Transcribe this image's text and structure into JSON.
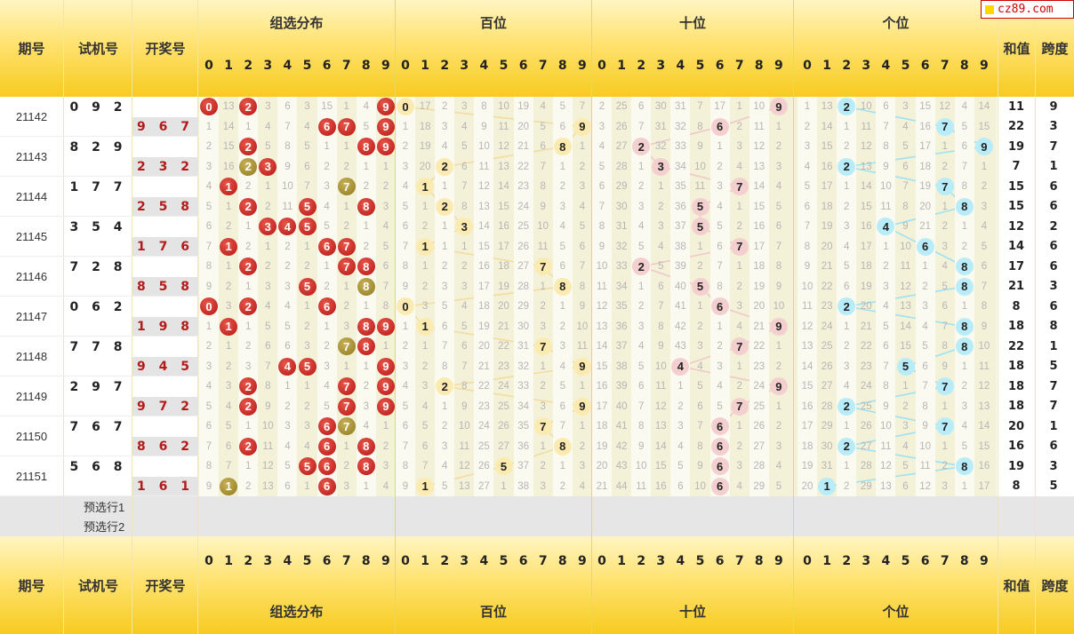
{
  "logo": "cz89.com",
  "headers": {
    "period": "期号",
    "trial": "试机号",
    "winning": "开奖号",
    "group": "组选分布",
    "hundreds": "百位",
    "tens": "十位",
    "units": "个位",
    "sum": "和值",
    "span": "跨度"
  },
  "digits": [
    "0",
    "1",
    "2",
    "3",
    "4",
    "5",
    "6",
    "7",
    "8",
    "9"
  ],
  "preselect": [
    "预选行1",
    "预选行2"
  ],
  "colors": {
    "red": "#b51414",
    "olive": "#8f7a1e",
    "yellow": "#fbebb0",
    "pink": "#f4cfcf",
    "blue": "#b9ecf9"
  },
  "draws": [
    {
      "period": "21142",
      "trial": "0 9 2",
      "win": "9 6 7",
      "ts": 11,
      "tp": 9,
      "ws": 22,
      "wp": 3
    },
    {
      "period": "21143",
      "trial": "8 2 9",
      "win": "2 3 2",
      "ts": 19,
      "tp": 7,
      "ws": 7,
      "wp": 1
    },
    {
      "period": "21144",
      "trial": "1 7 7",
      "win": "2 5 8",
      "ts": 15,
      "tp": 6,
      "ws": 15,
      "wp": 6
    },
    {
      "period": "21145",
      "trial": "3 5 4",
      "win": "1 7 6",
      "ts": 12,
      "tp": 2,
      "ws": 14,
      "wp": 6
    },
    {
      "period": "21146",
      "trial": "7 2 8",
      "win": "8 5 8",
      "ts": 17,
      "tp": 6,
      "ws": 21,
      "wp": 3
    },
    {
      "period": "21147",
      "trial": "0 6 2",
      "win": "1 9 8",
      "ts": 8,
      "tp": 6,
      "ws": 18,
      "wp": 8
    },
    {
      "period": "21148",
      "trial": "7 7 8",
      "win": "9 4 5",
      "ts": 22,
      "tp": 1,
      "ws": 18,
      "wp": 5
    },
    {
      "period": "21149",
      "trial": "2 9 7",
      "win": "9 7 2",
      "ts": 18,
      "tp": 7,
      "ws": 18,
      "wp": 7
    },
    {
      "period": "21150",
      "trial": "7 6 7",
      "win": "8 6 2",
      "ts": 20,
      "tp": 1,
      "ws": 16,
      "wp": 6
    },
    {
      "period": "21151",
      "trial": "5 6 8",
      "win": "1 6 1",
      "ts": 19,
      "tp": 3,
      "ws": 8,
      "wp": 5
    }
  ],
  "rows": [
    {
      "g": "0 13 2 3 6 3 15 1 4 9",
      "h": "0 17 2 3 8 10 19 4 5 7",
      "t": "2 25 6 30 31 7 17 1 10 9",
      "u": "1 13 2 10 6 3 15 12 4 14"
    },
    {
      "g": "1 14 1 4 7 4 6 7 5 9",
      "h": "1 18 3 4 9 11 20 5 6 9",
      "t": "3 26 7 31 32 8 6 2 11 1",
      "u": "2 14 1 11 7 4 16 7 5 15"
    },
    {
      "g": "2 15 2 5 8 5 1 1 8 9",
      "h": "2 19 4 5 10 12 21 6 8 1",
      "t": "4 27 2 32 33 9 1 3 12 2",
      "u": "3 15 2 12 8 5 17 1 6 9"
    },
    {
      "g": "3 16 2 3 9 6 2 2 1 1",
      "h": "3 20 2 6 11 13 22 7 1 2",
      "t": "5 28 1 3 34 10 2 4 13 3",
      "u": "4 16 2 13 9 6 18 2 7 1"
    },
    {
      "g": "4 1 2 1 10 7 3 7 2 2",
      "h": "4 1 1 7 12 14 23 8 2 3",
      "t": "6 29 2 1 35 11 3 7 14 4",
      "u": "5 17 1 14 10 7 19 7 8 2"
    },
    {
      "g": "5 1 2 2 11 5 4 1 8 3",
      "h": "5 1 2 8 13 15 24 9 3 4",
      "t": "7 30 3 2 36 5 4 1 15 5",
      "u": "6 18 2 15 11 8 20 1 8 3"
    },
    {
      "g": "6 2 1 3 4 5 5 2 1 4",
      "h": "6 2 1 3 14 16 25 10 4 5",
      "t": "8 31 4 3 37 5 5 2 16 6",
      "u": "7 19 3 16 4 9 21 2 1 4"
    },
    {
      "g": "7 1 2 1 2 1 6 7 2 5",
      "h": "7 1 1 1 15 17 26 11 5 6",
      "t": "9 32 5 4 38 1 6 7 17 7",
      "u": "8 20 4 17 1 10 6 3 2 5"
    },
    {
      "g": "8 1 2 2 2 2 1 7 8 6",
      "h": "8 1 2 2 16 18 27 7 6 7",
      "t": "10 33 2 5 39 2 7 1 18 8",
      "u": "9 21 5 18 2 11 1 4 8 6"
    },
    {
      "g": "9 2 1 3 3 5 2 1 8 7",
      "h": "9 2 3 3 17 19 28 1 8 8",
      "t": "11 34 1 6 40 5 8 2 19 9",
      "u": "10 22 6 19 3 12 2 5 8 7"
    },
    {
      "g": "0 3 2 4 4 1 6 2 1 8",
      "h": "0 3 5 4 18 20 29 2 1 9",
      "t": "12 35 2 7 41 1 6 3 20 10",
      "u": "11 23 2 20 4 13 3 6 1 8"
    },
    {
      "g": "1 1 1 5 5 2 1 3 8 9",
      "h": "1 1 6 5 19 21 30 3 2 10",
      "t": "13 36 3 8 42 2 1 4 21 9",
      "u": "12 24 1 21 5 14 4 7 8 9"
    },
    {
      "g": "2 1 2 6 6 3 2 7 8 1",
      "h": "2 1 7 6 20 22 31 7 3 11",
      "t": "14 37 4 9 43 3 2 7 22 1",
      "u": "13 25 2 22 6 15 5 8 8 10"
    },
    {
      "g": "3 2 3 7 4 5 3 1 1 9",
      "h": "3 2 8 7 21 23 32 1 4 9",
      "t": "15 38 5 10 4 4 3 1 23 2",
      "u": "14 26 3 23 7 5 6 9 1 11"
    },
    {
      "g": "4 3 2 8 1 1 4 7 2 9",
      "h": "4 3 2 8 22 24 33 2 5 1",
      "t": "16 39 6 11 1 5 4 2 24 9",
      "u": "15 27 4 24 8 1 7 7 2 12"
    },
    {
      "g": "5 4 2 9 2 2 5 7 3 9",
      "h": "5 4 1 9 23 25 34 3 6 9",
      "t": "17 40 7 12 2 6 5 7 25 1",
      "u": "16 28 2 25 9 2 8 1 3 13"
    },
    {
      "g": "6 5 1 10 3 3 6 7 4 1",
      "h": "6 5 2 10 24 26 35 7 7 1",
      "t": "18 41 8 13 3 7 6 1 26 2",
      "u": "17 29 1 26 10 3 9 7 4 14"
    },
    {
      "g": "7 6 2 11 4 4 6 1 8 2",
      "h": "7 6 3 11 25 27 36 1 8 2",
      "t": "19 42 9 14 4 8 6 2 27 3",
      "u": "18 30 2 27 11 4 10 1 5 15"
    },
    {
      "g": "8 7 1 12 5 5 6 2 8 3",
      "h": "8 7 4 12 26 5 37 2 1 3",
      "t": "20 43 10 15 5 9 6 3 28 4",
      "u": "19 31 1 28 12 5 11 2 8 16"
    },
    {
      "g": "9 1 2 13 6 1 6 3 1 4",
      "h": "9 1 5 13 27 1 38 3 2 4",
      "t": "21 44 11 16 6 10 6 4 29 5",
      "u": "20 1 2 29 13 6 12 3 1 17"
    }
  ],
  "hits": {
    "g": [
      [
        [
          0,
          "r"
        ],
        [
          2,
          "r"
        ],
        [
          9,
          "r"
        ]
      ],
      [
        [
          6,
          "r"
        ],
        [
          7,
          "r"
        ],
        [
          9,
          "r"
        ]
      ],
      [
        [
          2,
          "r"
        ],
        [
          8,
          "r"
        ],
        [
          9,
          "r"
        ]
      ],
      [
        [
          2,
          "o"
        ],
        [
          3,
          "r"
        ]
      ],
      [
        [
          1,
          "r"
        ],
        [
          7,
          "o"
        ]
      ],
      [
        [
          2,
          "r"
        ],
        [
          5,
          "r"
        ],
        [
          8,
          "r"
        ]
      ],
      [
        [
          3,
          "r"
        ],
        [
          4,
          "r"
        ],
        [
          5,
          "r"
        ]
      ],
      [
        [
          1,
          "r"
        ],
        [
          6,
          "r"
        ],
        [
          7,
          "r"
        ]
      ],
      [
        [
          2,
          "r"
        ],
        [
          7,
          "r"
        ],
        [
          8,
          "r"
        ]
      ],
      [
        [
          5,
          "r"
        ],
        [
          8,
          "o"
        ]
      ],
      [
        [
          0,
          "r"
        ],
        [
          2,
          "r"
        ],
        [
          6,
          "r"
        ]
      ],
      [
        [
          1,
          "r"
        ],
        [
          8,
          "r"
        ],
        [
          9,
          "r"
        ]
      ],
      [
        [
          7,
          "o"
        ],
        [
          8,
          "r"
        ]
      ],
      [
        [
          4,
          "r"
        ],
        [
          5,
          "r"
        ],
        [
          9,
          "r"
        ]
      ],
      [
        [
          2,
          "r"
        ],
        [
          7,
          "r"
        ],
        [
          9,
          "r"
        ]
      ],
      [
        [
          2,
          "r"
        ],
        [
          7,
          "r"
        ],
        [
          9,
          "r"
        ]
      ],
      [
        [
          6,
          "r"
        ],
        [
          7,
          "o"
        ]
      ],
      [
        [
          2,
          "r"
        ],
        [
          6,
          "r"
        ],
        [
          8,
          "r"
        ]
      ],
      [
        [
          5,
          "r"
        ],
        [
          6,
          "r"
        ],
        [
          8,
          "r"
        ]
      ],
      [
        [
          1,
          "o"
        ],
        [
          6,
          "r"
        ]
      ]
    ],
    "h": [
      0,
      9,
      8,
      2,
      1,
      2,
      3,
      1,
      7,
      8,
      0,
      1,
      7,
      9,
      2,
      9,
      7,
      8,
      5,
      1
    ],
    "t": [
      9,
      6,
      2,
      3,
      7,
      5,
      5,
      7,
      2,
      5,
      6,
      9,
      7,
      4,
      9,
      7,
      6,
      6,
      6,
      6
    ],
    "u": [
      2,
      7,
      9,
      2,
      7,
      8,
      4,
      6,
      8,
      8,
      2,
      8,
      8,
      5,
      7,
      2,
      7,
      2,
      8,
      1
    ]
  }
}
